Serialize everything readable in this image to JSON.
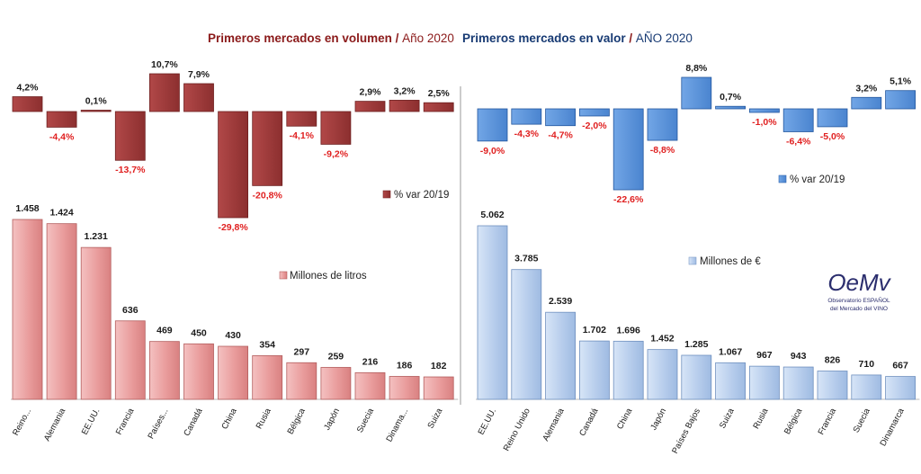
{
  "chart_data": [
    {
      "type": "bar",
      "panel": "left",
      "title_main": "Primeros mercados en volumen",
      "title_sep": " / ",
      "title_year": "Año 2020",
      "categories": [
        "Reino...",
        "Alemania",
        "EE.UU.",
        "Francia",
        "Países...",
        "Canadá",
        "China",
        "Rusia",
        "Bélgica",
        "Japón",
        "Suecia",
        "Dinama...",
        "Suiza"
      ],
      "series": [
        {
          "name": "% var 20/19",
          "values": [
            4.2,
            -4.4,
            0.1,
            -13.7,
            10.7,
            7.9,
            -29.8,
            -20.8,
            -4.1,
            -9.2,
            2.9,
            3.2,
            2.5
          ],
          "labels": [
            "4,2%",
            "-4,4%",
            "0,1%",
            "-13,7%",
            "10,7%",
            "7,9%",
            "-29,8%",
            "-20,8%",
            "-4,1%",
            "-9,2%",
            "2,9%",
            "3,2%",
            "2,5%"
          ]
        },
        {
          "name": "Millones de litros",
          "values": [
            1458,
            1424,
            1231,
            636,
            469,
            450,
            430,
            354,
            297,
            259,
            216,
            186,
            182
          ],
          "labels": [
            "1.458",
            "1.424",
            "1.231",
            "636",
            "469",
            "450",
            "430",
            "354",
            "297",
            "259",
            "216",
            "186",
            "182"
          ]
        }
      ],
      "ylim_pct": [
        -30,
        11
      ],
      "ylim_main": [
        0,
        1458
      ]
    },
    {
      "type": "bar",
      "panel": "right",
      "title_main": "Primeros mercados en valor",
      "title_sep": " / ",
      "title_year": "AÑO 2020",
      "categories": [
        "EE.UU.",
        "Reino Unido",
        "Alemania",
        "Canadá",
        "China",
        "Japón",
        "Países Bajos",
        "Suiza",
        "Rusia",
        "Bélgica",
        "Francia",
        "Suecia",
        "Dinamarca"
      ],
      "series": [
        {
          "name": "% var 20/19",
          "values": [
            -9.0,
            -4.3,
            -4.7,
            -2.0,
            -22.6,
            -8.8,
            8.8,
            0.7,
            -1.0,
            -6.4,
            -5.0,
            3.2,
            5.1
          ],
          "labels": [
            "-9,0%",
            "-4,3%",
            "-4,7%",
            "-2,0%",
            "-22,6%",
            "-8,8%",
            "8,8%",
            "0,7%",
            "-1,0%",
            "-6,4%",
            "-5,0%",
            "3,2%",
            "5,1%"
          ]
        },
        {
          "name": "Millones de €",
          "values": [
            5062,
            3785,
            2539,
            1702,
            1696,
            1452,
            1285,
            1067,
            967,
            943,
            826,
            710,
            667
          ],
          "labels": [
            "5.062",
            "3.785",
            "2.539",
            "1.702",
            "1.696",
            "1.452",
            "1.285",
            "1.067",
            "967",
            "943",
            "826",
            "710",
            "667"
          ]
        }
      ],
      "ylim_pct": [
        -23,
        9
      ],
      "ylim_main": [
        0,
        5062
      ]
    }
  ],
  "logo": {
    "mark": "OeMv",
    "line1": "Observatorio ESPAÑOL",
    "line2": "del Mercado del VINO"
  },
  "colors": {
    "vol_pct": "#9e3a3a",
    "vol_main": "#eba5a5",
    "val_pct": "#5a93da",
    "val_main": "#bcd2ee",
    "title_dark": "#8b1a1a",
    "title_blue": "#173a73",
    "neg_label": "#e02020"
  }
}
